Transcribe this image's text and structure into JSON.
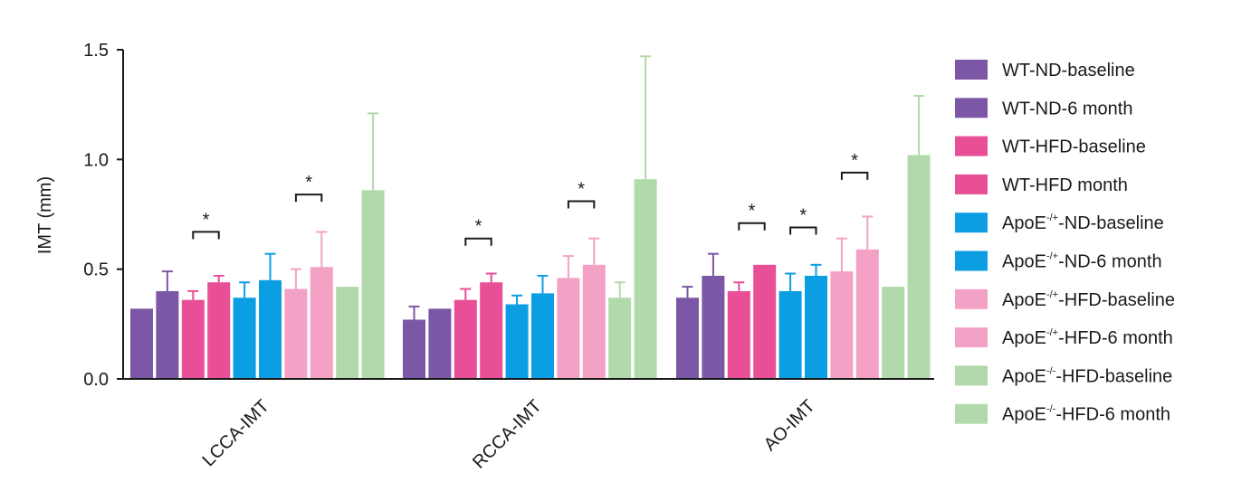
{
  "chart_data": {
    "type": "bar",
    "ylabel": "IMT (mm)",
    "ylim": [
      0,
      1.5
    ],
    "yticks": [
      "0.0",
      "0.5",
      "1.0",
      "1.5"
    ],
    "categories": [
      "LCCA-IMT",
      "RCCA-IMT",
      "AO-IMT"
    ],
    "grid": false,
    "legend_position": "right",
    "series": [
      {
        "name": "WT-ND-baseline",
        "legend_base": "WT-ND-baseline",
        "legend_sup": "",
        "legend_tail": "",
        "color": "#7b57a6",
        "values": [
          0.32,
          0.27,
          0.37
        ],
        "errors": [
          0.0,
          0.06,
          0.05
        ]
      },
      {
        "name": "WT-ND-6 month",
        "legend_base": "WT-ND-6 month",
        "legend_sup": "",
        "legend_tail": "",
        "color": "#7b57a6",
        "values": [
          0.4,
          0.32,
          0.47
        ],
        "errors": [
          0.09,
          0.0,
          0.1
        ]
      },
      {
        "name": "WT-HFD-baseline",
        "legend_base": "WT-HFD-baseline",
        "legend_sup": "",
        "legend_tail": "",
        "color": "#e84f96",
        "values": [
          0.36,
          0.36,
          0.4
        ],
        "errors": [
          0.04,
          0.05,
          0.04
        ]
      },
      {
        "name": "WT-HFD month",
        "legend_base": "WT-HFD month",
        "legend_sup": "",
        "legend_tail": "",
        "color": "#e84f96",
        "values": [
          0.44,
          0.44,
          0.52
        ],
        "errors": [
          0.03,
          0.04,
          0.0
        ]
      },
      {
        "name": "ApoE-/+-ND-baseline",
        "legend_base": "ApoE",
        "legend_sup": "-/+",
        "legend_tail": "-ND-baseline",
        "color": "#0c9ee3",
        "values": [
          0.37,
          0.34,
          0.4
        ],
        "errors": [
          0.07,
          0.04,
          0.08
        ]
      },
      {
        "name": "ApoE-/+-ND-6 month",
        "legend_base": "ApoE",
        "legend_sup": "-/+",
        "legend_tail": "-ND-6 month",
        "color": "#0c9ee3",
        "values": [
          0.45,
          0.39,
          0.47
        ],
        "errors": [
          0.12,
          0.08,
          0.05
        ]
      },
      {
        "name": "ApoE-/+-HFD-baseline",
        "legend_base": "ApoE",
        "legend_sup": "-/+",
        "legend_tail": "-HFD-baseline",
        "color": "#f3a2c5",
        "values": [
          0.41,
          0.46,
          0.49
        ],
        "errors": [
          0.09,
          0.1,
          0.15
        ]
      },
      {
        "name": "ApoE-/+-HFD-6 month",
        "legend_base": "ApoE",
        "legend_sup": "-/+",
        "legend_tail": "-HFD-6 month",
        "color": "#f3a2c5",
        "values": [
          0.51,
          0.52,
          0.59
        ],
        "errors": [
          0.16,
          0.12,
          0.15
        ]
      },
      {
        "name": "ApoE-/--HFD-baseline",
        "legend_base": "ApoE",
        "legend_sup": "-/-",
        "legend_tail": "-HFD-baseline",
        "color": "#b2d9ab",
        "values": [
          0.42,
          0.37,
          0.42
        ],
        "errors": [
          0.0,
          0.07,
          0.0
        ]
      },
      {
        "name": "ApoE-/--HFD-6 month",
        "legend_base": "ApoE",
        "legend_sup": "-/-",
        "legend_tail": "-HFD-6 month",
        "color": "#b2d9ab",
        "values": [
          0.86,
          0.91,
          1.02
        ],
        "errors": [
          0.35,
          0.56,
          0.27
        ]
      }
    ],
    "significance": [
      {
        "category": 0,
        "from": 2,
        "to": 3,
        "y": 0.67,
        "label": "*"
      },
      {
        "category": 0,
        "from": 6,
        "to": 7,
        "y": 0.84,
        "label": "*"
      },
      {
        "category": 1,
        "from": 2,
        "to": 3,
        "y": 0.64,
        "label": "*"
      },
      {
        "category": 1,
        "from": 6,
        "to": 7,
        "y": 0.81,
        "label": "*"
      },
      {
        "category": 2,
        "from": 2,
        "to": 3,
        "y": 0.71,
        "label": "*"
      },
      {
        "category": 2,
        "from": 4,
        "to": 5,
        "y": 0.69,
        "label": "*"
      },
      {
        "category": 2,
        "from": 6,
        "to": 7,
        "y": 0.94,
        "label": "*"
      }
    ]
  }
}
